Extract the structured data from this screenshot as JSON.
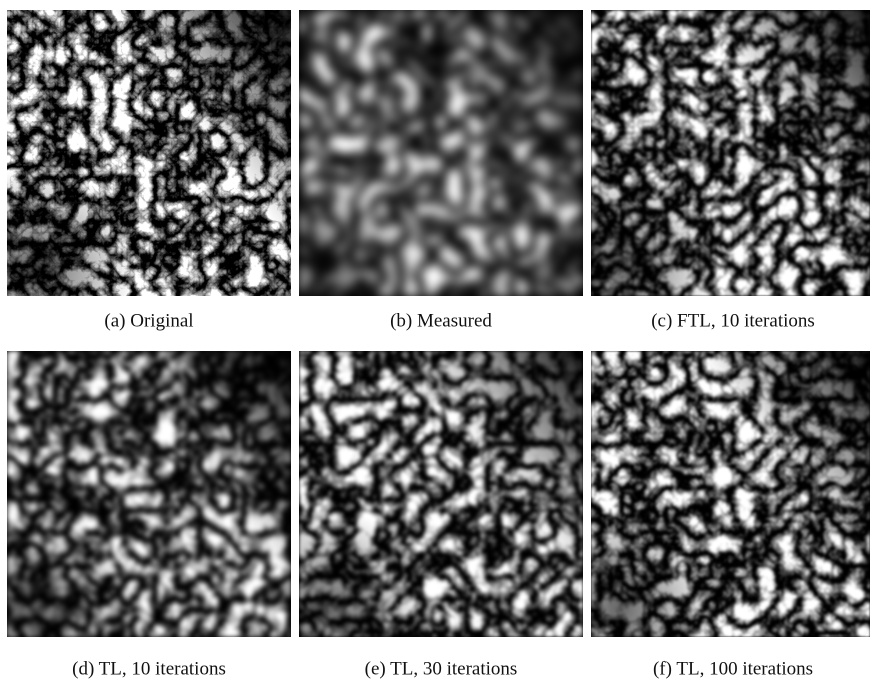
{
  "figure": {
    "panels": [
      {
        "caption": "(a) Original"
      },
      {
        "caption": "(b) Measured"
      },
      {
        "caption": "(c) FTL, 10 iterations"
      },
      {
        "caption": "(d) TL, 10 iterations"
      },
      {
        "caption": "(e) TL, 30 iterations"
      },
      {
        "caption": "(f) TL, 100 iterations"
      }
    ]
  }
}
